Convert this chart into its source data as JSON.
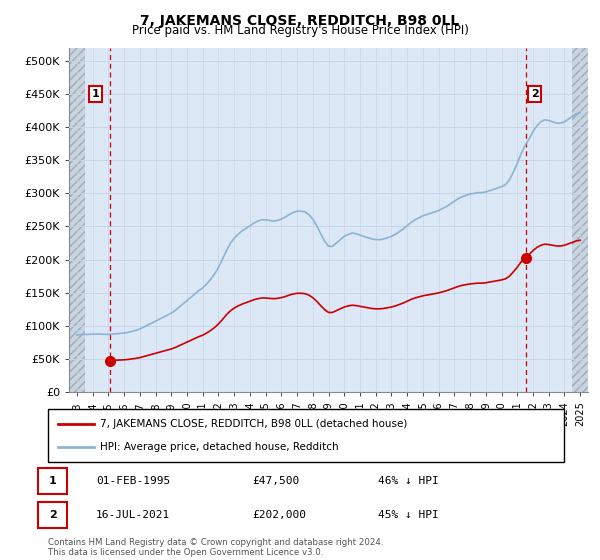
{
  "title": "7, JAKEMANS CLOSE, REDDITCH, B98 0LL",
  "subtitle": "Price paid vs. HM Land Registry's House Price Index (HPI)",
  "hpi_label": "HPI: Average price, detached house, Redditch",
  "property_label": "7, JAKEMANS CLOSE, REDDITCH, B98 0LL (detached house)",
  "hpi_color": "#8ab4d4",
  "property_color": "#cc0000",
  "dashed_color": "#cc0000",
  "marker_color": "#cc0000",
  "anno1_date": "01-FEB-1995",
  "anno1_price": "£47,500",
  "anno1_hpi": "46% ↓ HPI",
  "anno2_date": "16-JUL-2021",
  "anno2_price": "£202,000",
  "anno2_hpi": "45% ↓ HPI",
  "ylim": [
    0,
    520000
  ],
  "yticks": [
    0,
    50000,
    100000,
    150000,
    200000,
    250000,
    300000,
    350000,
    400000,
    450000,
    500000
  ],
  "ytick_labels": [
    "£0",
    "£50K",
    "£100K",
    "£150K",
    "£200K",
    "£250K",
    "£300K",
    "£350K",
    "£400K",
    "£450K",
    "£500K"
  ],
  "footer": "Contains HM Land Registry data © Crown copyright and database right 2024.\nThis data is licensed under the Open Government Licence v3.0.",
  "grid_color": "#c8d4e8",
  "plot_bg": "#dce8f5",
  "hatch_color": "#b8c8d8",
  "xlim_left": 1992.5,
  "xlim_right": 2025.5,
  "hatch_left_end": 1993.5,
  "hatch_right_start": 2024.5,
  "anno1_x": 1995.08,
  "anno1_y": 47500,
  "anno2_x": 2021.54,
  "anno2_y": 202000
}
